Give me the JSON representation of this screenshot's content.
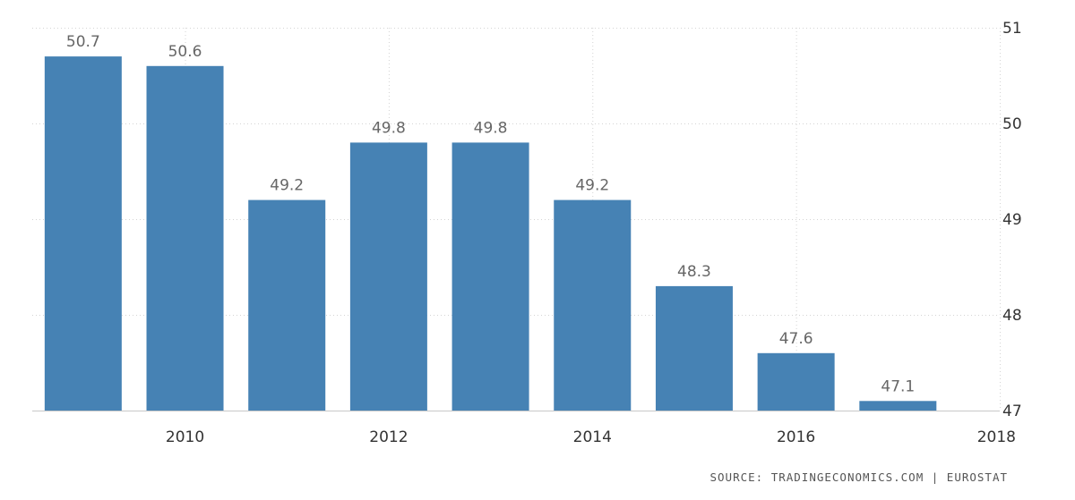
{
  "chart_data": {
    "type": "bar",
    "categories": [
      "2009",
      "2010",
      "2011",
      "2012",
      "2013",
      "2014",
      "2015",
      "2016",
      "2017"
    ],
    "values": [
      50.7,
      50.6,
      49.2,
      49.8,
      49.8,
      49.2,
      48.3,
      47.6,
      47.1
    ],
    "value_labels": [
      "50.7",
      "50.6",
      "49.2",
      "49.8",
      "49.8",
      "49.2",
      "48.3",
      "47.6",
      "47.1"
    ],
    "title": "",
    "xlabel": "",
    "ylabel": "",
    "ylim": [
      47,
      51
    ],
    "y_ticks": [
      "47",
      "48",
      "49",
      "50",
      "51"
    ],
    "x_ticks": [
      "2010",
      "2012",
      "2014",
      "2016",
      "2018"
    ],
    "x_tick_years": [
      2010,
      2012,
      2014,
      2016,
      2018
    ],
    "x_range": [
      2008.5,
      2018
    ],
    "y_axis_side": "right",
    "grid": true,
    "bar_color": "#4682b4"
  },
  "source": "SOURCE: TRADINGECONOMICS.COM | EUROSTAT"
}
